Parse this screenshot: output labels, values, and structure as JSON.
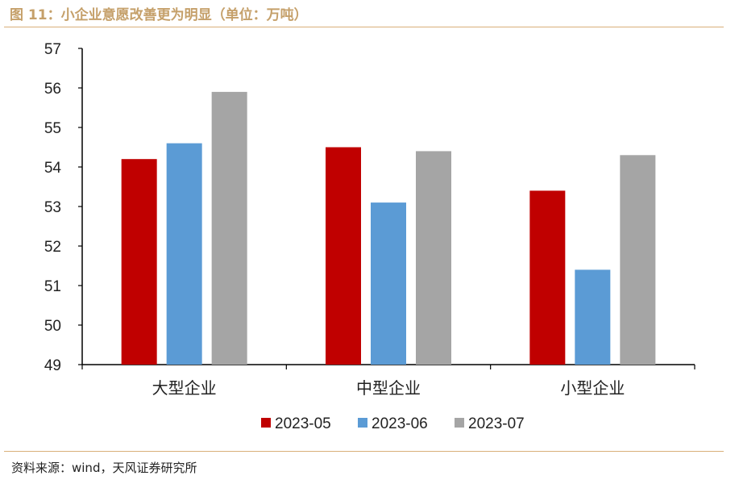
{
  "title": "图 11：小企业意愿改善更为明显（单位：万吨）",
  "source": "资料来源：wind，天风证券研究所",
  "chart_data": {
    "type": "bar",
    "categories": [
      "大型企业",
      "中型企业",
      "小型企业"
    ],
    "series": [
      {
        "name": "2023-05",
        "color": "#c00000",
        "values": [
          54.2,
          54.5,
          53.4
        ]
      },
      {
        "name": "2023-06",
        "color": "#5b9bd5",
        "values": [
          54.6,
          53.1,
          51.4
        ]
      },
      {
        "name": "2023-07",
        "color": "#a5a5a5",
        "values": [
          55.9,
          54.4,
          54.3
        ]
      }
    ],
    "ylim": [
      49,
      57
    ],
    "yticks": [
      49,
      50,
      51,
      52,
      53,
      54,
      55,
      56,
      57
    ],
    "grid": false,
    "legend_position": "bottom-center"
  }
}
